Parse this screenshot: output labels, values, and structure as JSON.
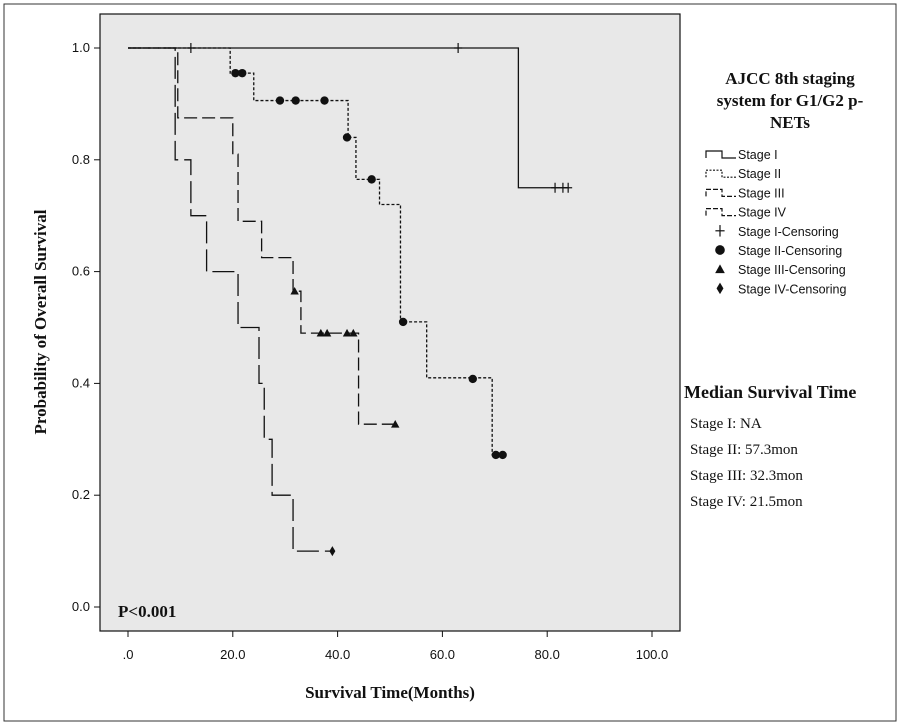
{
  "chart_data": {
    "type": "line",
    "subtype": "kaplan-meier",
    "xlabel": "Survival Time(Months)",
    "ylabel": "Probability of Overall Survival",
    "xlim": [
      0,
      100
    ],
    "ylim": [
      0,
      1
    ],
    "xticks": [
      ".0",
      "20.0",
      "40.0",
      "60.0",
      "80.0",
      "100.0"
    ],
    "yticks": [
      "0.0",
      "0.2",
      "0.4",
      "0.6",
      "0.8",
      "1.0"
    ],
    "pvalue": "P<0.001",
    "legend_title": "AJCC 8th staging system for G1/G2 p-NETs",
    "legend_title_lines": [
      "AJCC 8th staging",
      "system for G1/G2 p-",
      "NETs"
    ],
    "legend_position": "right",
    "legend": [
      {
        "label": "Stage I",
        "kind": "line",
        "series": 0
      },
      {
        "label": "Stage II",
        "kind": "line",
        "series": 1
      },
      {
        "label": "Stage III",
        "kind": "line",
        "series": 2
      },
      {
        "label": "Stage IV",
        "kind": "line",
        "series": 3
      },
      {
        "label": "Stage I-Censoring",
        "kind": "marker",
        "marker": "plus"
      },
      {
        "label": "Stage II-Censoring",
        "kind": "marker",
        "marker": "circle"
      },
      {
        "label": "Stage III-Censoring",
        "kind": "marker",
        "marker": "triangle"
      },
      {
        "label": "Stage IV-Censoring",
        "kind": "marker",
        "marker": "diamond"
      }
    ],
    "series": [
      {
        "name": "Stage I",
        "dash": "solid",
        "steps": [
          [
            0,
            1.0
          ],
          [
            74.5,
            0.75
          ]
        ],
        "end_x": 84,
        "censor_marker": "plus",
        "censored": [
          [
            12,
            1.0
          ],
          [
            63,
            1.0
          ],
          [
            81.5,
            0.75
          ],
          [
            83,
            0.75
          ],
          [
            84,
            0.75
          ]
        ]
      },
      {
        "name": "Stage II",
        "dash": "dotted",
        "steps": [
          [
            0,
            1.0
          ],
          [
            19.5,
            0.955
          ],
          [
            24,
            0.906
          ],
          [
            42,
            0.84
          ],
          [
            43.5,
            0.765
          ],
          [
            48,
            0.72
          ],
          [
            52,
            0.51
          ],
          [
            57,
            0.41
          ],
          [
            69.5,
            0.272
          ]
        ],
        "end_x": 71.5,
        "censor_marker": "circle",
        "censored": [
          [
            20.5,
            0.955
          ],
          [
            21.8,
            0.955
          ],
          [
            29,
            0.906
          ],
          [
            32,
            0.906
          ],
          [
            37.5,
            0.906
          ],
          [
            41.8,
            0.84
          ],
          [
            46.5,
            0.765
          ],
          [
            52.5,
            0.51
          ],
          [
            65.8,
            0.408
          ],
          [
            70.2,
            0.272
          ],
          [
            71.5,
            0.272
          ]
        ]
      },
      {
        "name": "Stage III",
        "dash": "dashed",
        "steps": [
          [
            0,
            1.0
          ],
          [
            9.5,
            0.875
          ],
          [
            20,
            0.81
          ],
          [
            21,
            0.69
          ],
          [
            25.5,
            0.625
          ],
          [
            31.5,
            0.565
          ],
          [
            33,
            0.49
          ],
          [
            44,
            0.327
          ]
        ],
        "end_x": 51,
        "censor_marker": "triangle",
        "censored": [
          [
            31.8,
            0.565
          ],
          [
            36.8,
            0.49
          ],
          [
            38,
            0.49
          ],
          [
            41.8,
            0.49
          ],
          [
            43,
            0.49
          ],
          [
            51,
            0.327
          ]
        ]
      },
      {
        "name": "Stage IV",
        "dash": "longdash",
        "steps": [
          [
            0,
            1.0
          ],
          [
            9,
            0.8
          ],
          [
            12,
            0.7
          ],
          [
            15,
            0.6
          ],
          [
            21,
            0.5
          ],
          [
            25,
            0.4
          ],
          [
            26,
            0.3
          ],
          [
            27.5,
            0.2
          ],
          [
            31.5,
            0.1
          ]
        ],
        "end_x": 39,
        "censor_marker": "diamond",
        "censored": [
          [
            39,
            0.1
          ]
        ]
      }
    ],
    "median_title": "Median Survival Time",
    "median_lines": [
      "Stage I: NA",
      "Stage II: 57.3mon",
      "Stage III: 32.3mon",
      "Stage IV: 21.5mon"
    ]
  }
}
